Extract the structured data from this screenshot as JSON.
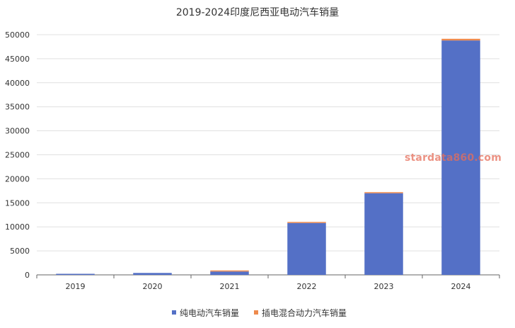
{
  "chart_data": {
    "type": "bar",
    "stacked": true,
    "title": "2019-2024印度尼西亚电动汽车销量",
    "xlabel": "",
    "ylabel": "",
    "categories": [
      "2019",
      "2020",
      "2021",
      "2022",
      "2023",
      "2024"
    ],
    "series": [
      {
        "name": "纯电动汽车销量",
        "color": "#5470c6",
        "values": [
          50,
          400,
          700,
          10800,
          17000,
          48800
        ]
      },
      {
        "name": "插电混合动力汽车销量",
        "color": "#ee8a4d",
        "values": [
          0,
          0,
          30,
          100,
          200,
          350
        ]
      }
    ],
    "ylim": [
      0,
      50000
    ],
    "yticks": [
      0,
      5000,
      10000,
      15000,
      20000,
      25000,
      30000,
      35000,
      40000,
      45000,
      50000
    ],
    "grid": true,
    "legend_position": "bottom"
  },
  "watermark": "stardata860.com"
}
